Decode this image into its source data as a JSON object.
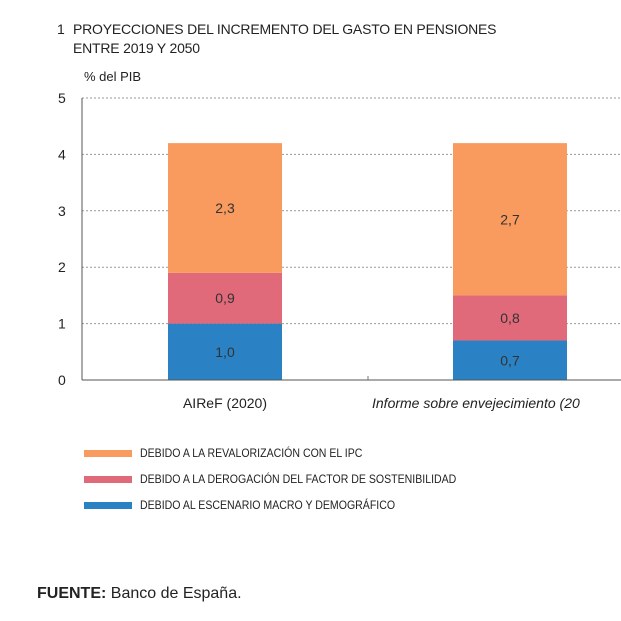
{
  "title": {
    "number": "1",
    "line1": "PROYECCIONES DEL INCREMENTO DEL GASTO EN PENSIONES",
    "line2": "ENTRE 2019 Y 2050"
  },
  "chart_data": {
    "type": "bar",
    "stacked": true,
    "ylabel": "% del PIB",
    "ylim": [
      0,
      5
    ],
    "yticks": [
      "0",
      "1",
      "2",
      "3",
      "4",
      "5"
    ],
    "grid": true,
    "categories": [
      "AIReF (2020)",
      "Informe sobre envejecimiento (20"
    ],
    "series": [
      {
        "name": "DEBIDO AL ESCENARIO MACRO Y DEMOGRÁFICO",
        "color": "#2A82C4",
        "values": [
          1.0,
          0.7
        ],
        "labels": [
          "1,0",
          "0,7"
        ]
      },
      {
        "name": "DEBIDO A LA DEROGACIÓN DEL FACTOR DE SOSTENIBILIDAD",
        "color": "#E0697A",
        "values": [
          0.9,
          0.8
        ],
        "labels": [
          "0,9",
          "0,8"
        ]
      },
      {
        "name": "DEBIDO A LA REVALORIZACIÓN CON EL IPC",
        "color": "#F99B5E",
        "values": [
          2.3,
          2.7
        ],
        "labels": [
          "2,3",
          "2,7"
        ]
      }
    ],
    "legend_position": "bottom"
  },
  "source": {
    "label": "FUENTE:",
    "text": " Banco de España."
  }
}
